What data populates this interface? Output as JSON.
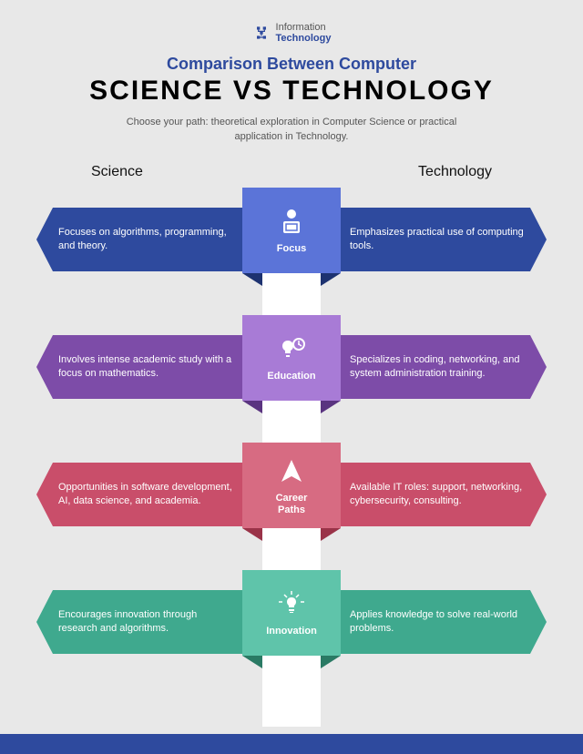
{
  "logo": {
    "line1": "Information",
    "line2": "Technology"
  },
  "title1": "Comparison Between Computer",
  "title2": "SCIENCE VS TECHNOLOGY",
  "subtitle": "Choose your path: theoretical exploration in Computer Science or practical application in Technology.",
  "columns": {
    "left": "Science",
    "right": "Technology"
  },
  "rows": [
    {
      "label": "Focus",
      "left": "Focuses on algorithms, programming, and theory.",
      "right": "Emphasizes practical use of computing tools.",
      "arrow_l": "#2e4a9e",
      "arrow_r": "#2e4a9e",
      "badge": "#5b74d8",
      "fold": "#1d3270",
      "icon": "focus"
    },
    {
      "label": "Education",
      "left": "Involves intense academic study with a focus on mathematics.",
      "right": "Specializes in coding, networking, and system administration training.",
      "arrow_l": "#7d4ca8",
      "arrow_r": "#7d4ca8",
      "badge": "#a87bd6",
      "fold": "#5a3480",
      "icon": "education"
    },
    {
      "label": "Career Paths",
      "left": "Opportunities in software development, AI, data science, and academia.",
      "right": "Available IT roles: support, networking, cybersecurity, consulting.",
      "arrow_l": "#c94e6a",
      "arrow_r": "#c94e6a",
      "badge": "#d76b82",
      "fold": "#9a3348",
      "icon": "career"
    },
    {
      "label": "Innovation",
      "left": "Encourages innovation through research and algorithms.",
      "right": "Applies knowledge to solve real-world problems.",
      "arrow_l": "#3fa98e",
      "arrow_r": "#3fa98e",
      "badge": "#5fc4aa",
      "fold": "#2a7a64",
      "icon": "innovation"
    }
  ],
  "footer_color": "#2e4a9e",
  "background": "#e8e8e8"
}
